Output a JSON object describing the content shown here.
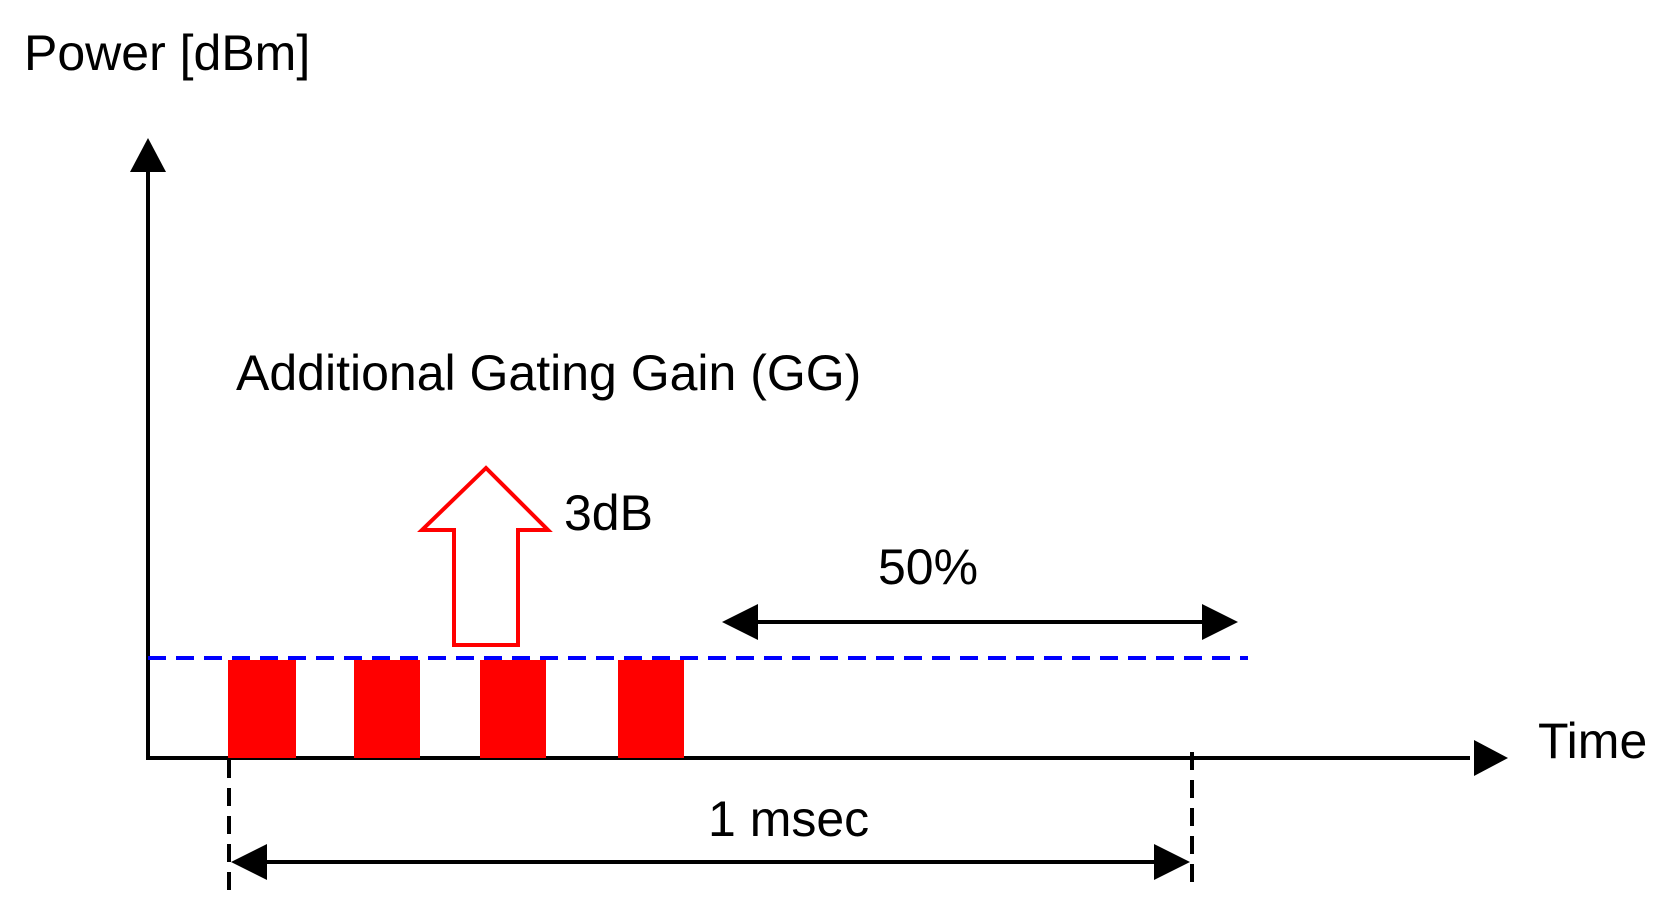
{
  "labels": {
    "y_axis": "Power [dBm]",
    "x_axis": "Time",
    "gain_title": "Additional Gating Gain (GG)",
    "gain_value": "3dB",
    "duty_cycle": "50%",
    "period": "1 msec"
  },
  "colors": {
    "axis": "#000000",
    "pulse": "#ff0000",
    "gain_arrow": "#ff0000",
    "power_level": "#0000ff"
  },
  "pulses": {
    "count": 4
  }
}
